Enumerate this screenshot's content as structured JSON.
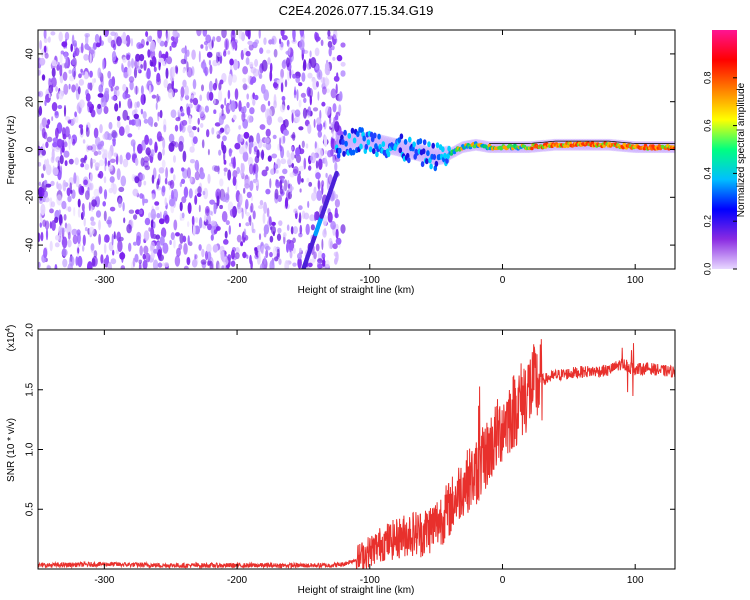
{
  "title": "C2E4.2026.077.15.34.G19",
  "colors": {
    "spectrogram_scatter": "#7b2cf0",
    "snr_line": "#e8302c",
    "axis": "#000000"
  },
  "chart_data": [
    {
      "type": "heatmap",
      "name": "spectrogram",
      "xlabel": "Height of straight line (km)",
      "ylabel": "Frequency (Hz)",
      "xlim": [
        -350,
        130
      ],
      "ylim": [
        -50,
        50
      ],
      "xticks": [
        -300,
        -200,
        -100,
        0,
        100
      ],
      "yticks": [
        -40,
        -20,
        0,
        20,
        40
      ],
      "noise_region_x": [
        -350,
        -130
      ],
      "occultation_start_x": -125,
      "signal_track": {
        "x": [
          -125,
          -110,
          -95,
          -80,
          -65,
          -50,
          -40,
          -30,
          -20,
          -10,
          0,
          20,
          40,
          60,
          80,
          100,
          130
        ],
        "y": [
          2,
          4,
          3,
          1,
          -1,
          -3,
          -2,
          1,
          2,
          1,
          1,
          1,
          2,
          2,
          2,
          1,
          1
        ]
      },
      "diagonal_streak": {
        "x": [
          -150,
          -125
        ],
        "y": [
          -50,
          -10
        ]
      },
      "colorbar": {
        "label": "Normalized spectral amplitude",
        "ticks": [
          0.0,
          0.2,
          0.4,
          0.6,
          0.8
        ],
        "tick_labels": [
          "0.0",
          "0.2",
          "0.4",
          "0.6",
          "0.8"
        ],
        "range": [
          0,
          1
        ],
        "stops": [
          "#e8d8ff",
          "#8a2be2",
          "#0000ff",
          "#00bfff",
          "#00ff80",
          "#ffff00",
          "#ff8000",
          "#ff0000",
          "#ff1493"
        ]
      }
    },
    {
      "type": "line",
      "name": "snr",
      "xlabel": "Height of straight line (km)",
      "ylabel": "SNR (10 * v/v)",
      "scale_label": "(x10",
      "scale_exp": "4",
      "scale_close": ")",
      "xlim": [
        -350,
        130
      ],
      "ylim": [
        0,
        2.0
      ],
      "xticks": [
        -300,
        -200,
        -100,
        0,
        100
      ],
      "yticks": [
        0.5,
        1.0,
        1.5,
        2.0
      ],
      "ytick_labels": [
        "0.5",
        "1.0",
        "1.5",
        "2.0"
      ],
      "x": [
        -350,
        -300,
        -250,
        -200,
        -150,
        -130,
        -120,
        -110,
        -100,
        -90,
        -80,
        -70,
        -60,
        -50,
        -40,
        -30,
        -20,
        -10,
        0,
        10,
        20,
        30,
        40,
        60,
        80,
        90,
        100,
        110,
        120,
        130
      ],
      "values": [
        0.03,
        0.04,
        0.03,
        0.03,
        0.03,
        0.03,
        0.04,
        0.08,
        0.15,
        0.22,
        0.25,
        0.3,
        0.3,
        0.38,
        0.5,
        0.7,
        0.8,
        1.0,
        1.2,
        1.35,
        1.5,
        1.58,
        1.62,
        1.65,
        1.66,
        1.72,
        1.67,
        1.68,
        1.66,
        1.65
      ]
    }
  ]
}
